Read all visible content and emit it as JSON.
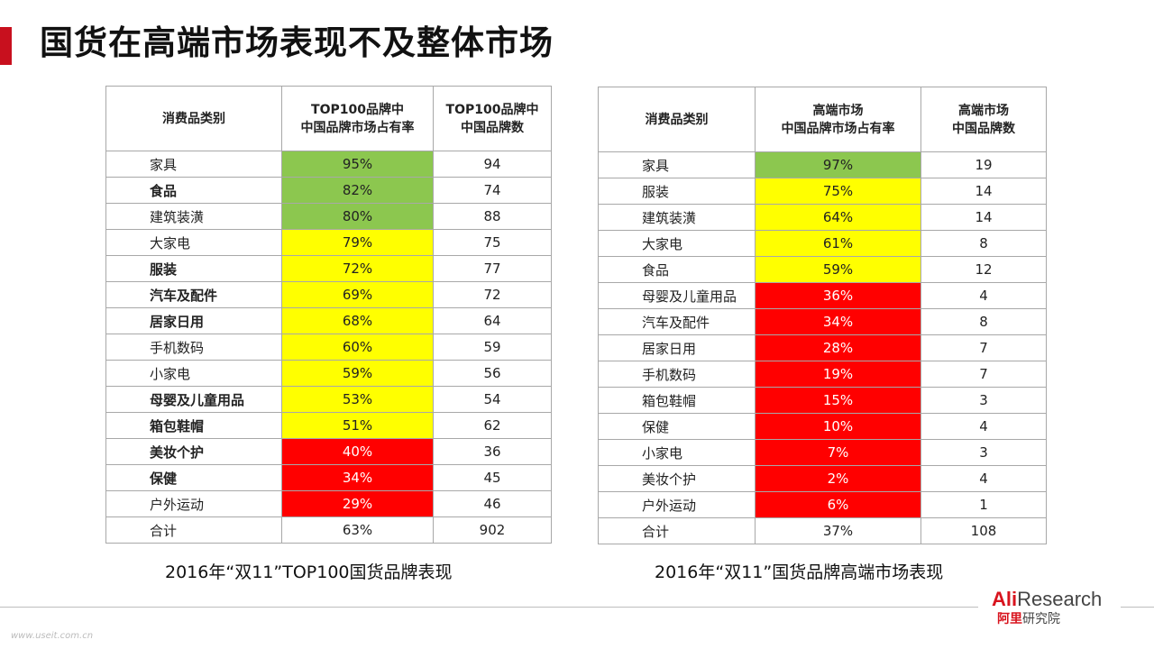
{
  "title": "国货在高端市场表现不及整体市场",
  "colors": {
    "green": "#8cc74f",
    "yellow": "#ffff00",
    "red": "#ff0000",
    "accent": "#c8101e"
  },
  "left_table": {
    "headers": [
      "消费品类别",
      "TOP100品牌中\n中国品牌市场占有率",
      "TOP100品牌中\n中国品牌数"
    ],
    "rows": [
      {
        "category": "家具",
        "share": "95%",
        "count": "94",
        "color": "green",
        "bold": false
      },
      {
        "category": "食品",
        "share": "82%",
        "count": "74",
        "color": "green",
        "bold": true
      },
      {
        "category": "建筑装潢",
        "share": "80%",
        "count": "88",
        "color": "green",
        "bold": false
      },
      {
        "category": "大家电",
        "share": "79%",
        "count": "75",
        "color": "yellow",
        "bold": false
      },
      {
        "category": "服装",
        "share": "72%",
        "count": "77",
        "color": "yellow",
        "bold": true
      },
      {
        "category": "汽车及配件",
        "share": "69%",
        "count": "72",
        "color": "yellow",
        "bold": true
      },
      {
        "category": "居家日用",
        "share": "68%",
        "count": "64",
        "color": "yellow",
        "bold": true
      },
      {
        "category": "手机数码",
        "share": "60%",
        "count": "59",
        "color": "yellow",
        "bold": false
      },
      {
        "category": "小家电",
        "share": "59%",
        "count": "56",
        "color": "yellow",
        "bold": false
      },
      {
        "category": "母婴及儿童用品",
        "share": "53%",
        "count": "54",
        "color": "yellow",
        "bold": true
      },
      {
        "category": "箱包鞋帽",
        "share": "51%",
        "count": "62",
        "color": "yellow",
        "bold": true
      },
      {
        "category": "美妆个护",
        "share": "40%",
        "count": "36",
        "color": "red",
        "bold": true
      },
      {
        "category": "保健",
        "share": "34%",
        "count": "45",
        "color": "red",
        "bold": true
      },
      {
        "category": "户外运动",
        "share": "29%",
        "count": "46",
        "color": "red",
        "bold": false
      }
    ],
    "total": {
      "category": "合计",
      "share": "63%",
      "count": "902"
    },
    "caption": "2016年“双11”TOP100国货品牌表现"
  },
  "right_table": {
    "headers": [
      "消费品类别",
      "高端市场\n中国品牌市场占有率",
      "高端市场\n中国品牌数"
    ],
    "rows": [
      {
        "category": "家具",
        "share": "97%",
        "count": "19",
        "color": "green",
        "bold": false
      },
      {
        "category": "服装",
        "share": "75%",
        "count": "14",
        "color": "yellow",
        "bold": false
      },
      {
        "category": "建筑装潢",
        "share": "64%",
        "count": "14",
        "color": "yellow",
        "bold": false
      },
      {
        "category": "大家电",
        "share": "61%",
        "count": "8",
        "color": "yellow",
        "bold": false
      },
      {
        "category": "食品",
        "share": "59%",
        "count": "12",
        "color": "yellow",
        "bold": false
      },
      {
        "category": "母婴及儿童用品",
        "share": "36%",
        "count": "4",
        "color": "red",
        "bold": false
      },
      {
        "category": "汽车及配件",
        "share": "34%",
        "count": "8",
        "color": "red",
        "bold": false
      },
      {
        "category": "居家日用",
        "share": "28%",
        "count": "7",
        "color": "red",
        "bold": false
      },
      {
        "category": "手机数码",
        "share": "19%",
        "count": "7",
        "color": "red",
        "bold": false
      },
      {
        "category": "箱包鞋帽",
        "share": "15%",
        "count": "3",
        "color": "red",
        "bold": false
      },
      {
        "category": "保健",
        "share": "10%",
        "count": "4",
        "color": "red",
        "bold": false
      },
      {
        "category": "小家电",
        "share": "7%",
        "count": "3",
        "color": "red",
        "bold": false
      },
      {
        "category": "美妆个护",
        "share": "2%",
        "count": "4",
        "color": "red",
        "bold": false
      },
      {
        "category": "户外运动",
        "share": "6%",
        "count": "1",
        "color": "red",
        "bold": false
      }
    ],
    "total": {
      "category": "合计",
      "share": "37%",
      "count": "108"
    },
    "caption": "2016年“双11”国货品牌高端市场表现"
  },
  "logo": {
    "en_ali": "Ali",
    "en_research": "Research",
    "cn_brand": "阿里",
    "cn_institute": "研究院"
  },
  "watermark": "www.useit.com.cn"
}
